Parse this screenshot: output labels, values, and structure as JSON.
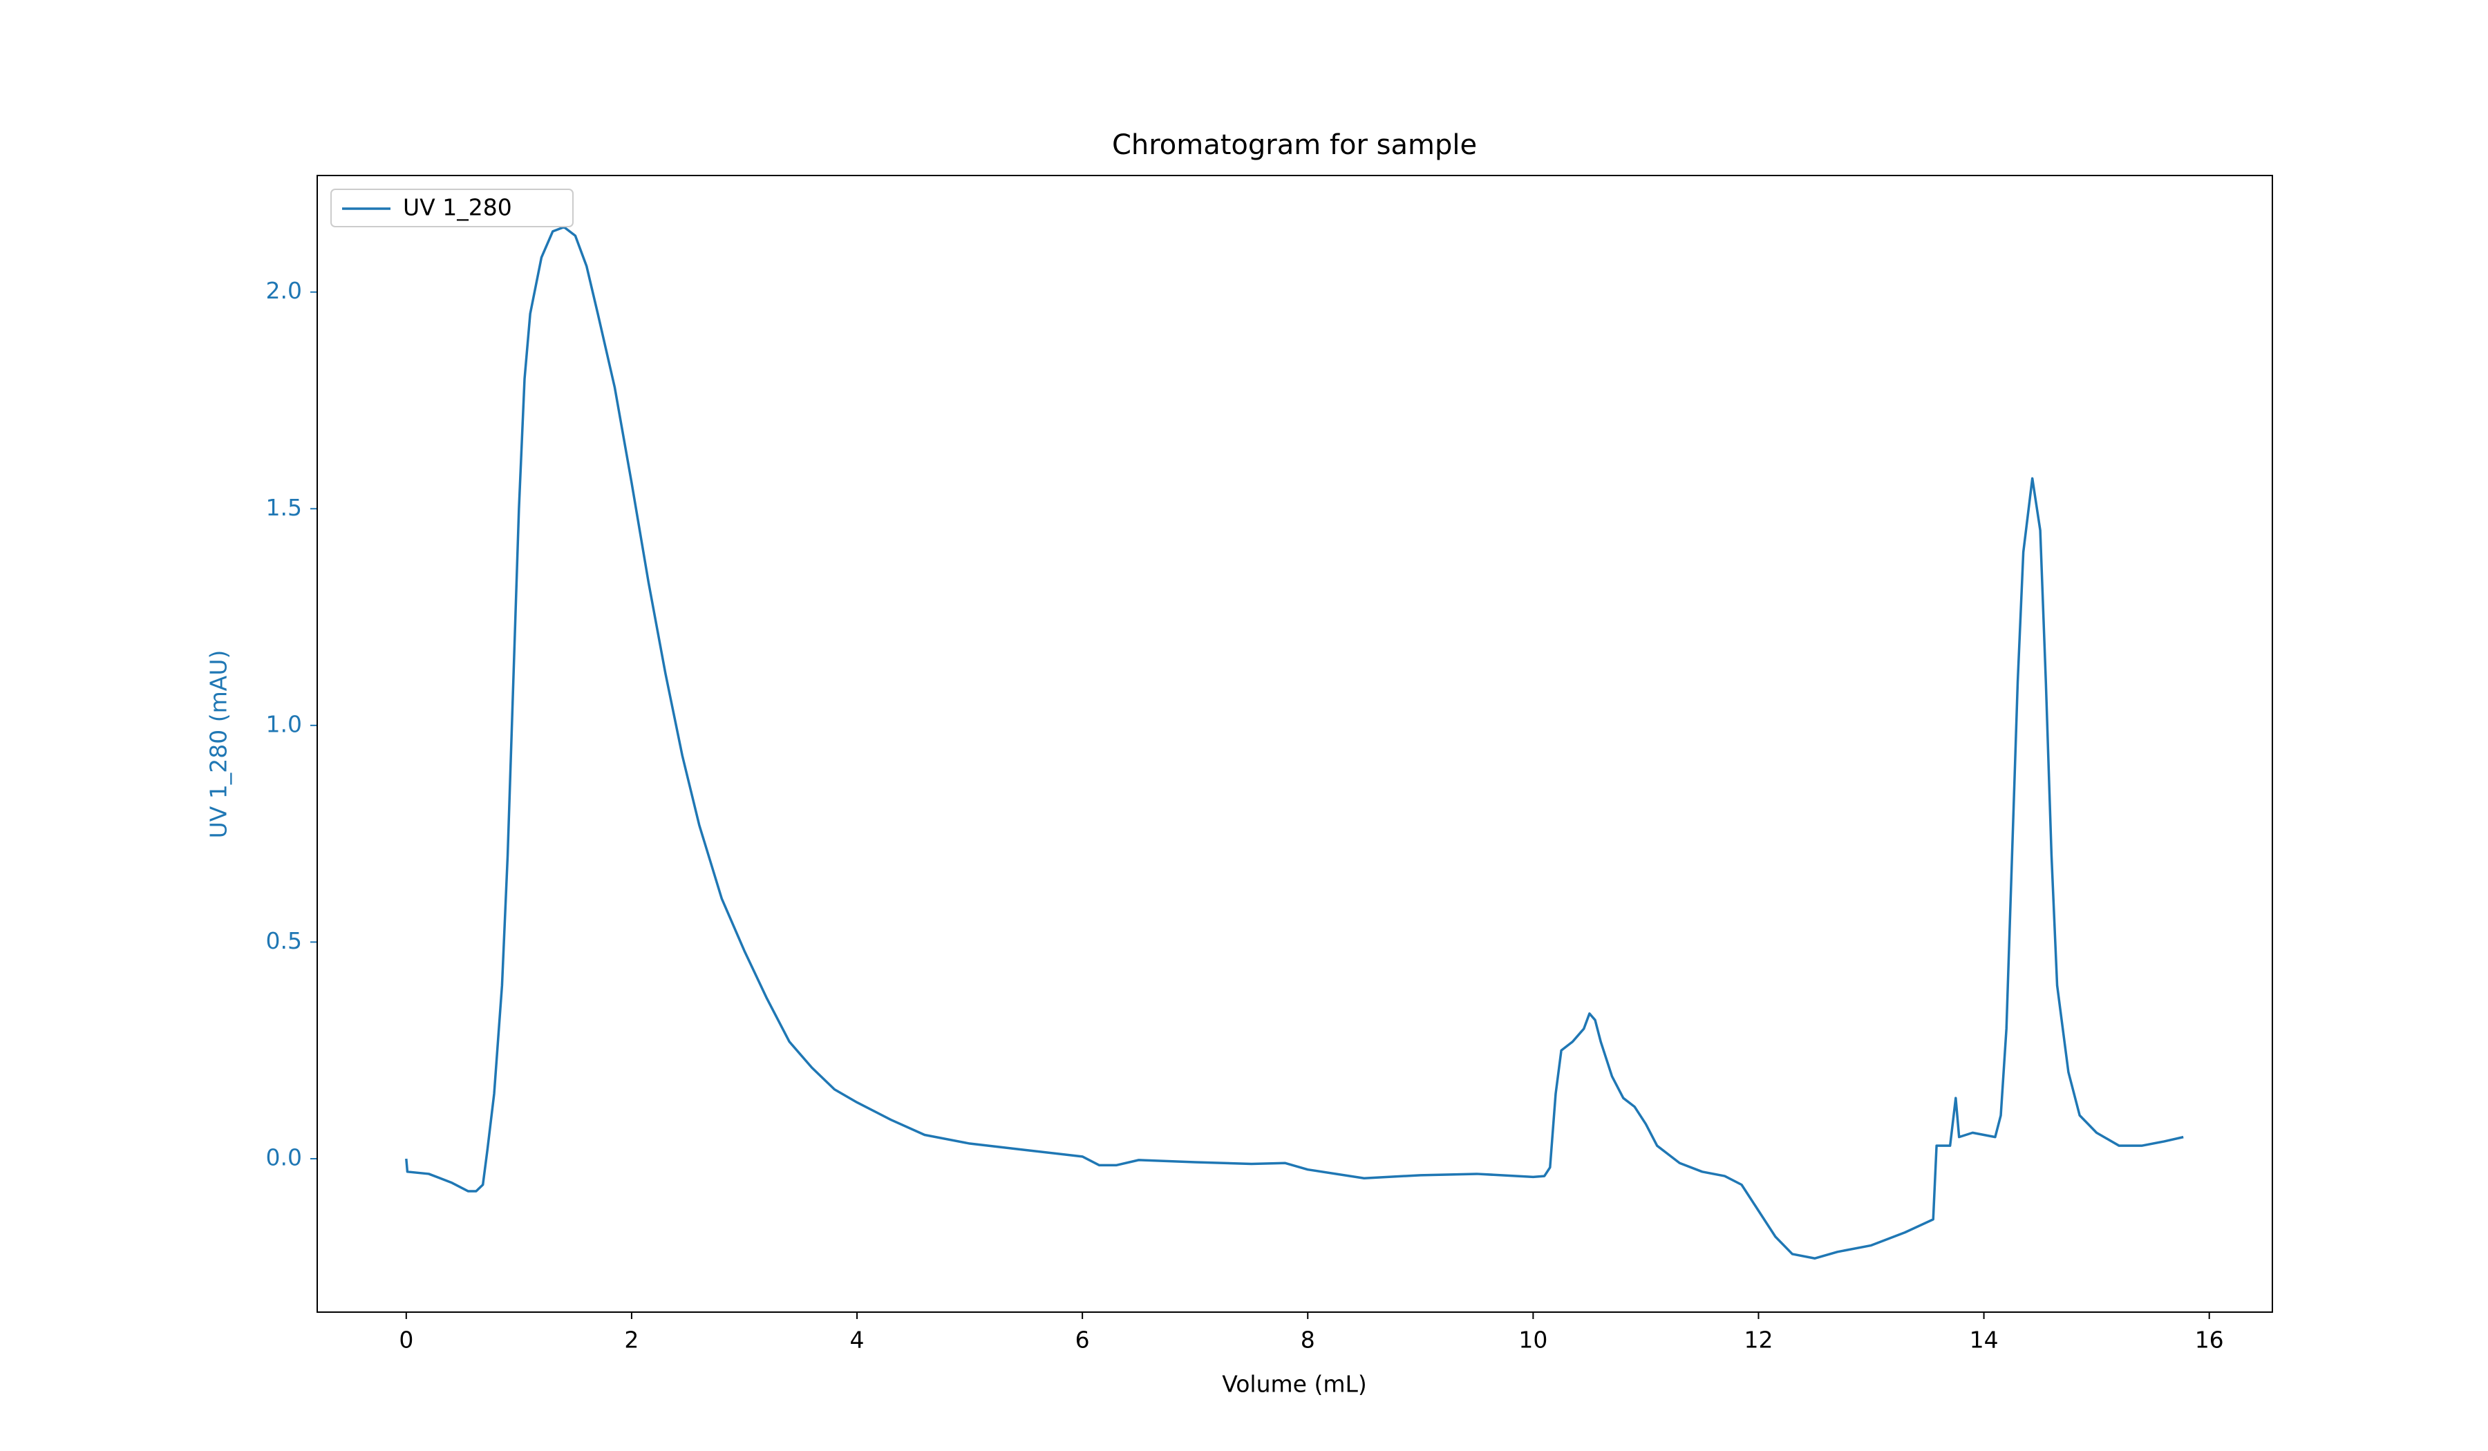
{
  "chart_data": {
    "type": "line",
    "title": "Chromatogram for sample",
    "xlabel": "Volume (mL)",
    "ylabel": "UV 1_280 (mAU)",
    "x": [
      0,
      0.01,
      0.2,
      0.4,
      0.55,
      0.62,
      0.68,
      0.72,
      0.78,
      0.85,
      0.9,
      0.95,
      1.0,
      1.05,
      1.1,
      1.2,
      1.3,
      1.4,
      1.5,
      1.6,
      1.7,
      1.85,
      2.0,
      2.15,
      2.3,
      2.45,
      2.6,
      2.8,
      3.0,
      3.2,
      3.4,
      3.6,
      3.8,
      4.0,
      4.3,
      4.6,
      5.0,
      5.5,
      6.0,
      6.15,
      6.3,
      6.5,
      7.0,
      7.5,
      7.8,
      8.0,
      8.5,
      9.0,
      9.5,
      10.0,
      10.1,
      10.15,
      10.2,
      10.25,
      10.35,
      10.45,
      10.5,
      10.55,
      10.6,
      10.7,
      10.8,
      10.9,
      11.0,
      11.1,
      11.3,
      11.5,
      11.7,
      11.85,
      12.0,
      12.15,
      12.3,
      12.5,
      12.7,
      13.0,
      13.3,
      13.55,
      13.58,
      13.7,
      13.75,
      13.78,
      13.9,
      14.1,
      14.15,
      14.2,
      14.25,
      14.3,
      14.35,
      14.43,
      14.5,
      14.55,
      14.6,
      14.65,
      14.75,
      14.85,
      15.0,
      15.2,
      15.4,
      15.6,
      15.77
    ],
    "series": [
      {
        "name": "UV 1_280",
        "color": "#1f77b4",
        "values": [
          0.0,
          -0.03,
          -0.035,
          -0.055,
          -0.075,
          -0.075,
          -0.06,
          0.02,
          0.15,
          0.4,
          0.7,
          1.1,
          1.5,
          1.8,
          1.95,
          2.08,
          2.14,
          2.15,
          2.13,
          2.06,
          1.95,
          1.78,
          1.56,
          1.33,
          1.12,
          0.93,
          0.77,
          0.6,
          0.48,
          0.37,
          0.27,
          0.21,
          0.16,
          0.13,
          0.09,
          0.055,
          0.035,
          0.02,
          0.005,
          -0.015,
          -0.015,
          -0.003,
          -0.008,
          -0.012,
          -0.01,
          -0.025,
          -0.045,
          -0.038,
          -0.035,
          -0.042,
          -0.04,
          -0.02,
          0.15,
          0.25,
          0.27,
          0.3,
          0.335,
          0.32,
          0.27,
          0.19,
          0.14,
          0.12,
          0.08,
          0.03,
          -0.01,
          -0.03,
          -0.04,
          -0.06,
          -0.12,
          -0.18,
          -0.22,
          -0.23,
          -0.215,
          -0.2,
          -0.17,
          -0.14,
          0.03,
          0.03,
          0.14,
          0.05,
          0.06,
          0.05,
          0.1,
          0.3,
          0.7,
          1.1,
          1.4,
          1.57,
          1.45,
          1.1,
          0.7,
          0.4,
          0.2,
          0.1,
          0.06,
          0.03,
          0.03,
          0.04,
          0.05
        ]
      }
    ],
    "xlim": [
      -0.79,
      16.56
    ],
    "xticks": [
      0,
      2,
      4,
      6,
      8,
      10,
      12,
      14,
      16
    ],
    "ylim": [
      -0.354,
      2.269
    ],
    "yticks": [
      {
        "value": 0,
        "label": "0.0"
      },
      0.5,
      {
        "value": 1,
        "label": "1.0"
      },
      1.5,
      {
        "value": 2,
        "label": "2.0"
      }
    ],
    "legend": "upper left",
    "grid": false
  }
}
